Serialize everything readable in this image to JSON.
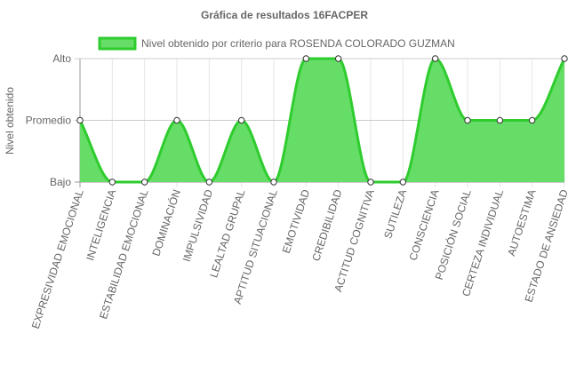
{
  "chart_data": {
    "type": "line",
    "title": "Gráfica de resultados 16FACPER",
    "ylabel": "Nivel obtenido",
    "xlabel": "",
    "y_levels": [
      "Bajo",
      "Promedio",
      "Alto"
    ],
    "ylim": [
      1,
      3
    ],
    "grid": true,
    "legend_position": "top",
    "categories": [
      "EXPRESIVIDAD EMOCIONAL",
      "INTELIGENCIA",
      "ESTABILIDAD EMOCIONAL",
      "DOMINACIÓN",
      "IMPULSIVIDAD",
      "LEALTAD GRUPAL",
      "APTITUD SITUACIONAL",
      "EMOTIVIDAD",
      "CREDIBILIDAD",
      "ACTITUD COGNITIVA",
      "SUTILEZA",
      "CONSCIENCIA",
      "POSICIÓN SOCIAL",
      "CERTEZA INDIVIDUAL",
      "AUTOESTIMA",
      "ESTADO DE ANSIEDAD"
    ],
    "series": [
      {
        "name": "Nivel obtenido por criterio para ROSENDA COLORADO GUZMAN",
        "values": [
          2,
          1,
          1,
          2,
          1,
          2,
          1,
          3,
          3,
          1,
          1,
          3,
          2,
          2,
          2,
          3
        ],
        "line_color": "#2ecc2e",
        "fill_color": "#66dd66"
      }
    ]
  }
}
